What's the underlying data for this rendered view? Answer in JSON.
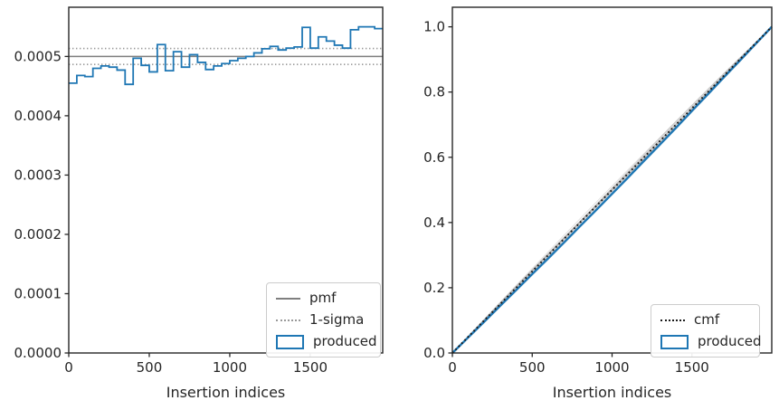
{
  "figure": {
    "background": "#ffffff",
    "spine_color": "#262626",
    "text_color": "#262626"
  },
  "chart_data": [
    {
      "type": "step-histogram",
      "title": "",
      "xlabel": "Insertion indices",
      "ylabel": "",
      "xlim": [
        0,
        1950
      ],
      "ylim": [
        0,
        0.000583
      ],
      "xticks": [
        0,
        500,
        1000,
        1500
      ],
      "ytick_labels": [
        "0.0000",
        "0.0001",
        "0.0002",
        "0.0003",
        "0.0004",
        "0.0005"
      ],
      "ytick_values": [
        0,
        0.0001,
        0.0002,
        0.0003,
        0.0004,
        0.0005
      ],
      "grid": false,
      "bin_start": 0,
      "bin_width": 50,
      "produced": [
        0.000455,
        0.000468,
        0.000466,
        0.00048,
        0.000484,
        0.000482,
        0.000477,
        0.000453,
        0.000497,
        0.000485,
        0.000474,
        0.00052,
        0.000476,
        0.000508,
        0.000482,
        0.000503,
        0.00049,
        0.000478,
        0.000484,
        0.000488,
        0.000493,
        0.000497,
        0.0005,
        0.000506,
        0.000513,
        0.000517,
        0.000511,
        0.000514,
        0.000516,
        0.000549,
        0.000514,
        0.000533,
        0.000526,
        0.000519,
        0.000514,
        0.000545,
        0.00055,
        0.00055,
        0.000547
      ],
      "pmf": 0.0005,
      "sigma_upper": 0.0005135,
      "sigma_lower": 0.0004865,
      "colors": {
        "produced": "#1f77b4",
        "pmf": "#7f7f7f",
        "sigma": "#999999"
      },
      "legend": [
        {
          "label": "pmf",
          "swatch": "line-solid-gray"
        },
        {
          "label": "1-sigma",
          "swatch": "line-dotted-gray"
        },
        {
          "label": "produced",
          "swatch": "rect-blue"
        }
      ],
      "legend_position": "lower right"
    },
    {
      "type": "line",
      "title": "",
      "xlabel": "Insertion indices",
      "ylabel": "",
      "xlim": [
        0,
        2000
      ],
      "ylim": [
        0,
        1.06
      ],
      "xticks": [
        0,
        500,
        1000,
        1500
      ],
      "ytick_labels": [
        "0.0",
        "0.2",
        "0.4",
        "0.6",
        "0.8",
        "1.0"
      ],
      "ytick_values": [
        0,
        0.2,
        0.4,
        0.6,
        0.8,
        1.0
      ],
      "grid": false,
      "x": [
        0,
        100,
        200,
        300,
        400,
        500,
        600,
        700,
        800,
        900,
        1000,
        1100,
        1200,
        1300,
        1400,
        1500,
        1600,
        1700,
        1800,
        1900,
        2000
      ],
      "series": [
        {
          "name": "cmf",
          "style": "dotted",
          "color": "#1a1a1a",
          "width": 2,
          "values": [
            0,
            0.05,
            0.1,
            0.15,
            0.2,
            0.25,
            0.3,
            0.35,
            0.4,
            0.45,
            0.5,
            0.55,
            0.6,
            0.65,
            0.7,
            0.75,
            0.8,
            0.85,
            0.9,
            0.95,
            1.0
          ]
        },
        {
          "name": "produced",
          "style": "solid",
          "color": "#1f77b4",
          "width": 2.4,
          "values": [
            0,
            0.048,
            0.096,
            0.145,
            0.193,
            0.242,
            0.29,
            0.339,
            0.389,
            0.438,
            0.488,
            0.538,
            0.589,
            0.639,
            0.69,
            0.742,
            0.793,
            0.845,
            0.896,
            0.948,
            1.0
          ]
        }
      ],
      "ensemble": {
        "count": 13,
        "spread": 0.017,
        "color": "#999999",
        "opacity": 0.3
      },
      "legend": [
        {
          "label": "cmf",
          "swatch": "line-dotted-black"
        },
        {
          "label": "produced",
          "swatch": "rect-blue"
        }
      ],
      "legend_position": "lower right"
    }
  ]
}
